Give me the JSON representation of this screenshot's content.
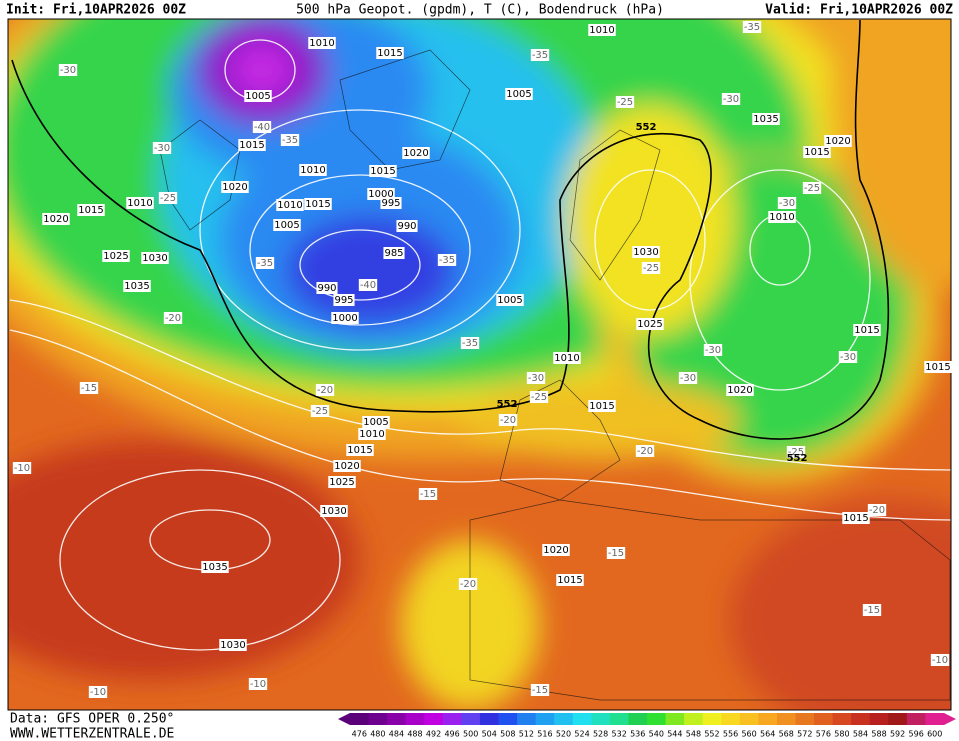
{
  "header": {
    "init": "Init: Fri,10APR2026 00Z",
    "title": "500 hPa Geopot. (gpdm), T (C), Bodendruck (hPa)",
    "valid": "Valid: Fri,10APR2026 00Z"
  },
  "footer": {
    "source": "Data: GFS OPER 0.250°",
    "website": "WWW.WETTERZENTRALE.DE"
  },
  "pressure_labels": [
    1010,
    1015,
    1010,
    1005,
    1005,
    1035,
    1020,
    1015,
    1015,
    1020,
    1010,
    1015,
    1020,
    1010,
    1015,
    1020,
    1010,
    1015,
    1000,
    995,
    990,
    985,
    1005,
    1025,
    1030,
    1035,
    990,
    995,
    1000,
    1030,
    1010,
    1025,
    1005,
    1010,
    1015,
    1015,
    1015,
    1005,
    1010,
    1015,
    1020,
    1025,
    1030,
    1020,
    1035,
    1030,
    1020,
    1015,
    1015
  ],
  "temperature_labels": [
    -30,
    -30,
    -25,
    -35,
    -35,
    -25,
    -30,
    -35,
    -40,
    -35,
    -40,
    -35,
    -20,
    -15,
    -10,
    -20,
    -25,
    -35,
    -30,
    -25,
    -20,
    -15,
    -15,
    -20,
    -15,
    -15,
    -10,
    -10,
    -10,
    -25,
    -30,
    -30,
    -30,
    -30,
    -25,
    -20,
    -20,
    -25
  ],
  "geopotential_labels": [
    552,
    552,
    552
  ],
  "colorbar": {
    "levels": [
      476,
      480,
      484,
      488,
      492,
      496,
      500,
      504,
      508,
      512,
      516,
      520,
      524,
      528,
      532,
      536,
      540,
      544,
      548,
      552,
      556,
      560,
      564,
      568,
      572,
      576,
      580,
      584,
      588,
      592,
      596,
      600
    ],
    "colors": [
      "#5a0078",
      "#6e0090",
      "#8a00a8",
      "#a800c8",
      "#c000e0",
      "#9a20f0",
      "#6040f0",
      "#3030e0",
      "#2050f0",
      "#2080f0",
      "#20a0f0",
      "#20c0f0",
      "#20e0f0",
      "#20e0c0",
      "#20e090",
      "#20d050",
      "#30e030",
      "#80e820",
      "#c0f020",
      "#f0f020",
      "#f8d820",
      "#f8c020",
      "#f8a820",
      "#f09020",
      "#e87820",
      "#e06020",
      "#d84820",
      "#c83020",
      "#b82020",
      "#a01818",
      "#c02060",
      "#e02090"
    ]
  }
}
